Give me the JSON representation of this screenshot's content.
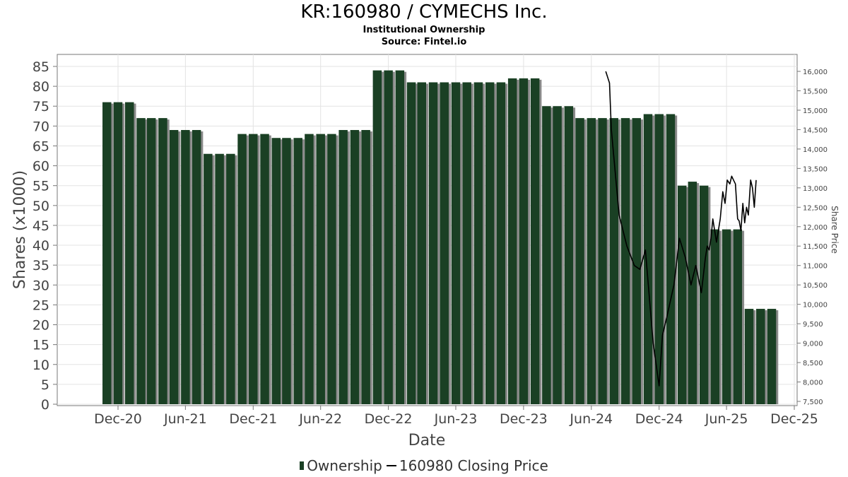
{
  "chart_data": {
    "type": "bar",
    "title": "KR:160980 / CYMECHS Inc.",
    "subtitle": "Institutional Ownership",
    "source": "Source: Fintel.io",
    "xlabel": "Date",
    "ylabel": "Shares (x1000)",
    "y2label": "Share Price",
    "ylim": [
      0,
      85
    ],
    "y2lim": [
      7500,
      16000
    ],
    "y_ticks": [
      0,
      5,
      10,
      15,
      20,
      25,
      30,
      35,
      40,
      45,
      50,
      55,
      60,
      65,
      70,
      75,
      80,
      85
    ],
    "y2_ticks": [
      "7,500",
      "8,000",
      "8,500",
      "9,000",
      "9,500",
      "10,000",
      "10,500",
      "11,000",
      "11,500",
      "12,000",
      "12,500",
      "13,000",
      "13,500",
      "14,000",
      "14,500",
      "15,000",
      "15,500",
      "16,000"
    ],
    "x_ticks": [
      "Dec-20",
      "Jun-21",
      "Dec-21",
      "Jun-22",
      "Dec-22",
      "Jun-23",
      "Dec-23",
      "Jun-24",
      "Dec-24",
      "Jun-25",
      "Dec-25"
    ],
    "grid": true,
    "legend_position": "bottom",
    "series": [
      {
        "name": "Ownership",
        "type": "bar",
        "color": "#1a4024",
        "values": [
          76,
          76,
          76,
          72,
          72,
          72,
          69,
          69,
          69,
          63,
          63,
          63,
          68,
          68,
          68,
          67,
          67,
          67,
          68,
          68,
          68,
          69,
          69,
          69,
          84,
          84,
          84,
          81,
          81,
          81,
          81,
          81,
          81,
          81,
          81,
          81,
          82,
          82,
          82,
          75,
          75,
          75,
          72,
          72,
          72,
          72,
          72,
          72,
          73,
          73,
          73,
          55,
          56,
          55,
          44,
          44,
          44,
          24,
          24,
          24
        ]
      },
      {
        "name": "160980 Closing Price",
        "type": "line",
        "color": "#000000",
        "x": [
          "2024-07-10",
          "2024-07-20",
          "2024-07-25",
          "2024-08-15",
          "2024-09-05",
          "2024-09-25",
          "2024-10-10",
          "2024-10-25",
          "2024-11-15",
          "2024-12-01",
          "2024-12-10",
          "2024-12-20",
          "2025-01-10",
          "2025-01-25",
          "2025-02-10",
          "2025-02-25",
          "2025-03-10",
          "2025-03-25",
          "2025-04-05",
          "2025-04-10",
          "2025-04-15",
          "2025-04-20",
          "2025-04-25",
          "2025-05-05",
          "2025-05-15",
          "2025-05-22",
          "2025-05-28",
          "2025-06-03",
          "2025-06-10",
          "2025-06-15",
          "2025-06-20",
          "2025-06-25",
          "2025-07-01",
          "2025-07-05",
          "2025-07-10",
          "2025-07-15",
          "2025-07-20",
          "2025-07-25",
          "2025-07-30",
          "2025-08-05",
          "2025-08-10",
          "2025-08-15",
          "2025-08-20"
        ],
        "values": [
          16000,
          15700,
          14500,
          12300,
          11500,
          11000,
          10900,
          11400,
          9000,
          7900,
          9200,
          9600,
          10500,
          11700,
          11200,
          10500,
          11000,
          10300,
          11200,
          11500,
          11400,
          11700,
          12200,
          11600,
          12200,
          12900,
          12600,
          13200,
          13100,
          13300,
          13200,
          13100,
          12200,
          12150,
          11900,
          12600,
          12100,
          12500,
          12300,
          13200,
          13000,
          12500,
          13200
        ]
      }
    ]
  }
}
